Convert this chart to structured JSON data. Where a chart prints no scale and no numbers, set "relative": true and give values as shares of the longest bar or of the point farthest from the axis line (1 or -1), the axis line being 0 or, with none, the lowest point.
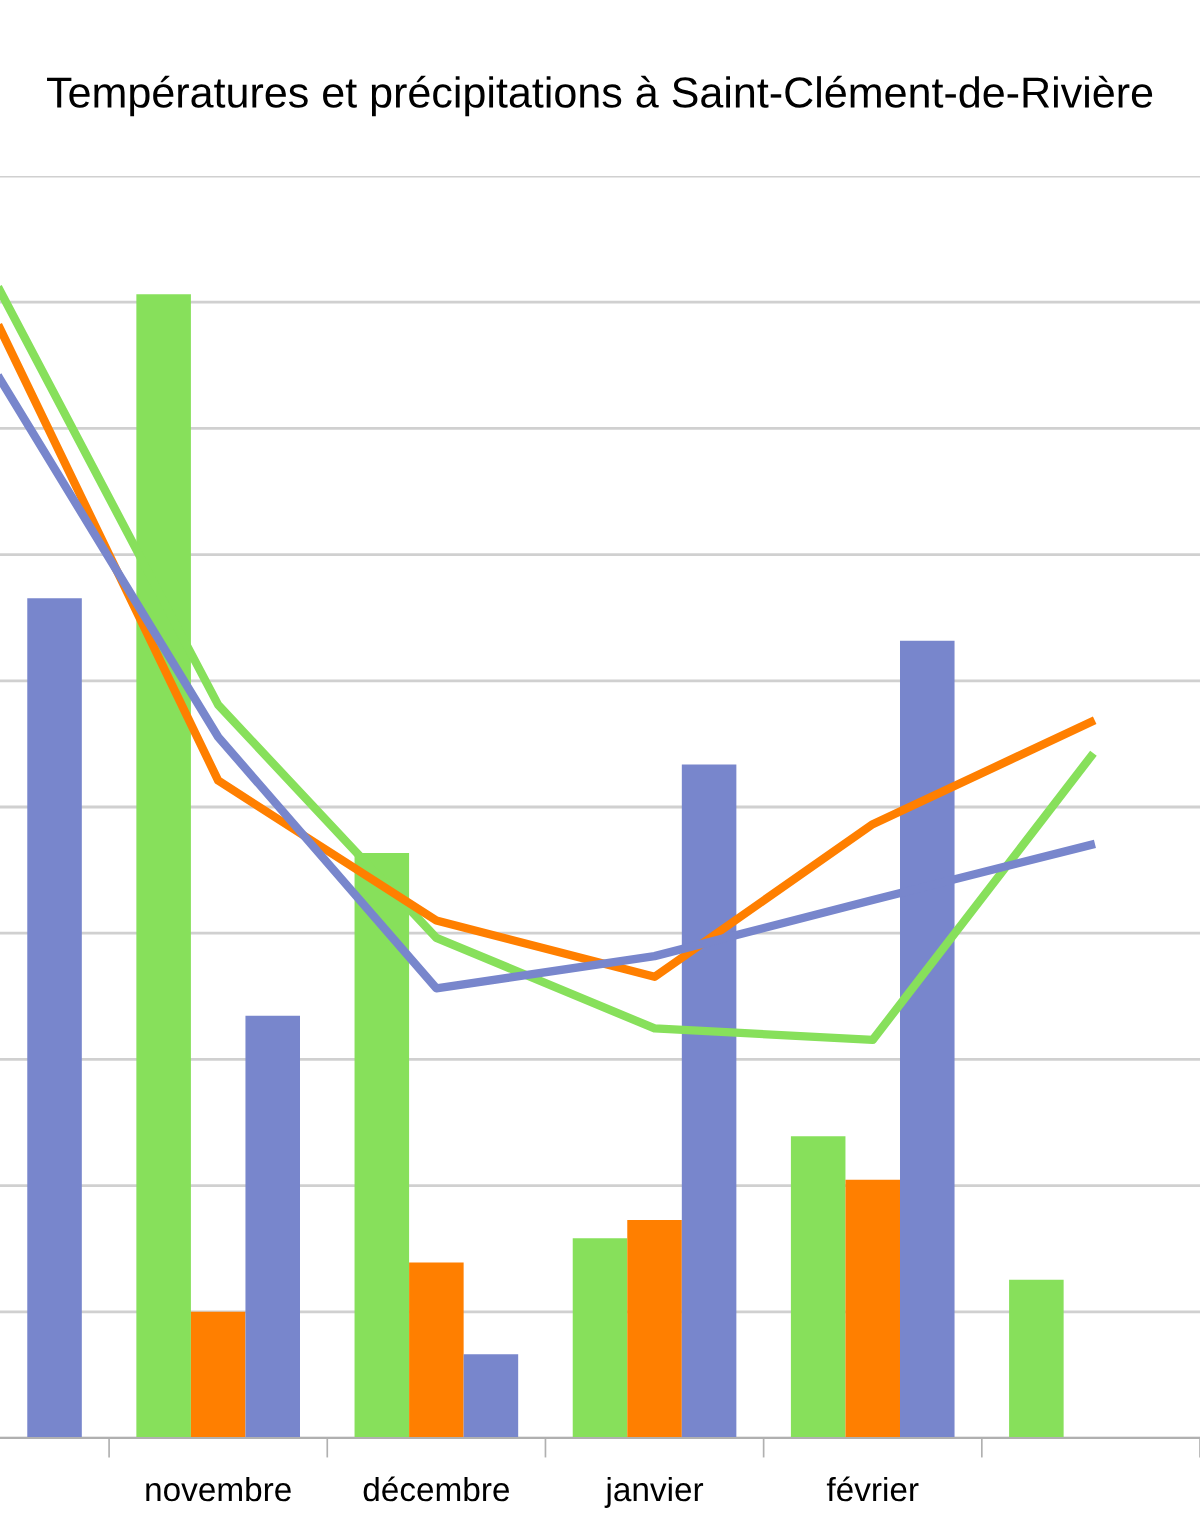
{
  "chart_data": {
    "type": "bar",
    "title": "Températures et précipitations à Saint-Clément-de-Rivière",
    "relative": true,
    "grid": "y",
    "legend": false,
    "categories": [
      null,
      "novembre",
      "décembre",
      "janvier",
      "février",
      null
    ],
    "series": [
      {
        "color": "#87e05b",
        "values": [
          null,
          0.997,
          0.51,
          0.174,
          0.263,
          0.138
        ]
      },
      {
        "color": "#ff7f00",
        "values": [
          null,
          0.11,
          0.153,
          0.19,
          0.225,
          null
        ]
      },
      {
        "color": "#7886cc",
        "values": [
          0.732,
          0.368,
          0.073,
          0.587,
          0.695,
          null
        ]
      },
      {
        "type": "line",
        "color": "#87e05b",
        "values": [
          1.0,
          0.639,
          0.436,
          0.357,
          0.347,
          0.594
        ]
      },
      {
        "type": "line",
        "color": "#ff7f00",
        "values": [
          0.967,
          0.573,
          0.451,
          0.402,
          0.535,
          0.624
        ]
      },
      {
        "type": "line",
        "color": "#7886cc",
        "values": [
          0.923,
          0.611,
          0.392,
          0.42,
          0.469,
          0.517
        ]
      }
    ]
  }
}
